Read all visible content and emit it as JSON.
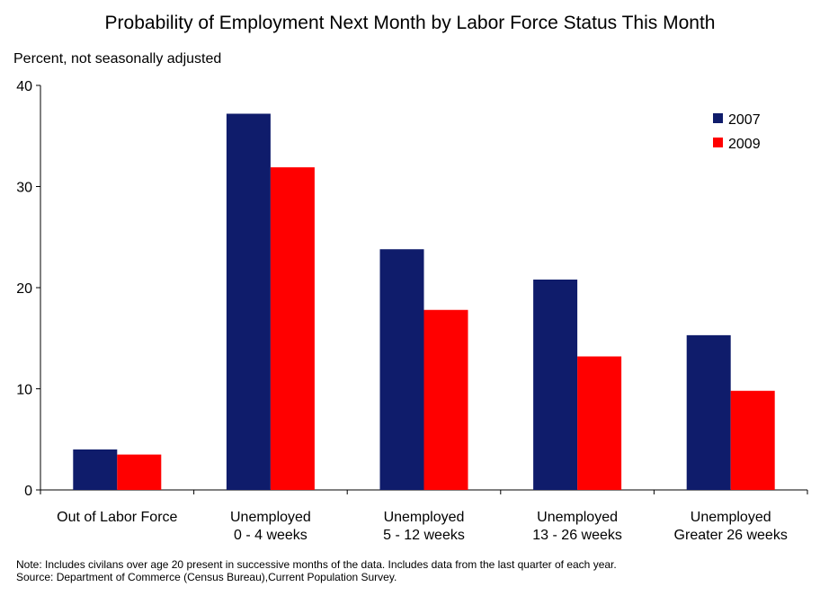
{
  "chart_data": {
    "type": "bar",
    "title": "Probability of Employment Next Month by Labor Force Status This Month",
    "ylabel": "Percent, not seasonally adjusted",
    "xlabel": "",
    "ylim": [
      0,
      40
    ],
    "yticks": [
      0,
      10,
      20,
      30,
      40
    ],
    "categories": [
      [
        "Out of Labor Force"
      ],
      [
        "Unemployed",
        "0 - 4 weeks"
      ],
      [
        "Unemployed",
        "5 - 12 weeks"
      ],
      [
        "Unemployed",
        "13 - 26 weeks"
      ],
      [
        "Unemployed",
        "Greater 26 weeks"
      ]
    ],
    "series": [
      {
        "name": "2007",
        "color": "#0f1c6b",
        "values": [
          4.0,
          37.2,
          23.8,
          20.8,
          15.3
        ]
      },
      {
        "name": "2009",
        "color": "#ff0000",
        "values": [
          3.5,
          31.9,
          17.8,
          13.2,
          9.8
        ]
      }
    ],
    "legend": "top-right",
    "grid": false
  },
  "notes": {
    "line1": "Note: Includes civilans over age 20 present in successive months of the data.  Includes data from the last quarter of each year.",
    "line2": "Source: Department of Commerce (Census Bureau),Current  Population Survey."
  }
}
